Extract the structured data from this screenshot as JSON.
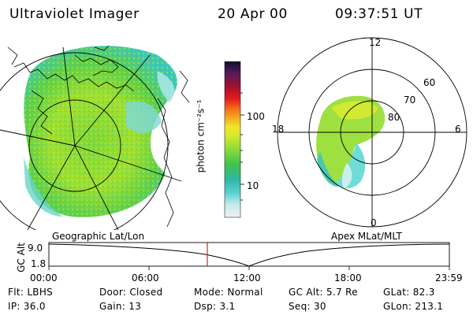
{
  "header": {
    "title": "Ultraviolet Imager",
    "date": "20 Apr 00",
    "time": "09:37:51 UT"
  },
  "colorbar": {
    "unit_label": "photon cm⁻²s⁻¹",
    "ticks": [
      "100",
      "10"
    ],
    "colors": [
      "#e8e8e8",
      "#c6ecec",
      "#8fdfe0",
      "#3fc8c8",
      "#2fb6a4",
      "#35c35a",
      "#58d23c",
      "#94de35",
      "#c8e630",
      "#eeea28",
      "#f6c81e",
      "#f4981c",
      "#f25a1c",
      "#e81c1c",
      "#c0102a",
      "#8c1030",
      "#6a1a55",
      "#2a1e50",
      "#141432"
    ]
  },
  "left_map": {
    "caption": "Geographic Lat/Lon"
  },
  "right_map": {
    "caption": "Apex MLat/MLT",
    "hour_labels": {
      "top": "12",
      "left": "18",
      "right": "6",
      "bottom": "0"
    },
    "lat_labels": [
      "60",
      "70",
      "80"
    ]
  },
  "altitude_plot": {
    "ylabel": "GC Alt",
    "ymax": "9.0",
    "ymin": "1.8",
    "x_ticks": [
      "00:00",
      "06:00",
      "12:00",
      "18:00",
      "23:59"
    ],
    "marker_color": "#e02020"
  },
  "info": {
    "row1": [
      {
        "label": "Flt:",
        "value": "LBHS"
      },
      {
        "label": "Door:",
        "value": "Closed"
      },
      {
        "label": "Mode:",
        "value": "Normal"
      },
      {
        "label": "GC Alt:",
        "value": "5.7 Re"
      },
      {
        "label": "GLat:",
        "value": "82.3"
      }
    ],
    "row2": [
      {
        "label": "IP:",
        "value": "36.0"
      },
      {
        "label": "Gain:",
        "value": "13"
      },
      {
        "label": "Dsp:",
        "value": "3.1"
      },
      {
        "label": "Seq:",
        "value": "30"
      },
      {
        "label": "GLon:",
        "value": "213.1"
      }
    ]
  }
}
